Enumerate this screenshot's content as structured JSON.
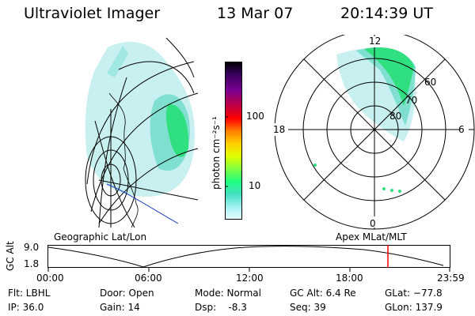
{
  "header": {
    "instrument": "Ultraviolet Imager",
    "date": "13 Mar 07",
    "time": "20:14:39 UT"
  },
  "panels": {
    "left_label": "Geographic Lat/Lon",
    "right_label": "Apex MLat/MLT"
  },
  "colorbar": {
    "unit_label": "photon cm⁻²s⁻¹",
    "ticks": [
      "100",
      "10"
    ],
    "colors": [
      "#000000",
      "#3a0060",
      "#7a0090",
      "#c00040",
      "#ff0000",
      "#ff8000",
      "#ffd000",
      "#e0ff00",
      "#80ff40",
      "#20ff80",
      "#40e0c0",
      "#a0f0f0",
      "#e8ffff"
    ]
  },
  "polar": {
    "mlt_labels": [
      "12",
      "18",
      "6",
      "0"
    ],
    "lat_labels": [
      "60",
      "70",
      "80"
    ]
  },
  "altitude_plot": {
    "ylabel": "GC Alt",
    "yticks": [
      "9.0",
      "1.8"
    ],
    "xticks": [
      "00:00",
      "06:00",
      "12:00",
      "18:00",
      "23:59"
    ]
  },
  "info": {
    "filter": "Flt: LBHL",
    "ip": "IP: 36.0",
    "door": "Door: Open",
    "gain": "Gain: 14",
    "mode": "Mode: Normal",
    "dsp": "Dsp:    -8.3",
    "gc_alt": "GC Alt: 6.4 Re",
    "seq": "Seq: 39",
    "glat": "GLat: −77.8",
    "glon": "GLon: 137.9"
  },
  "colors": {
    "aurora_faint": "#c8f0f0",
    "aurora_mid": "#80e0d0",
    "aurora_bright": "#30e080",
    "current_time_marker": "#ff0000",
    "coast_line": "#2040c0"
  }
}
